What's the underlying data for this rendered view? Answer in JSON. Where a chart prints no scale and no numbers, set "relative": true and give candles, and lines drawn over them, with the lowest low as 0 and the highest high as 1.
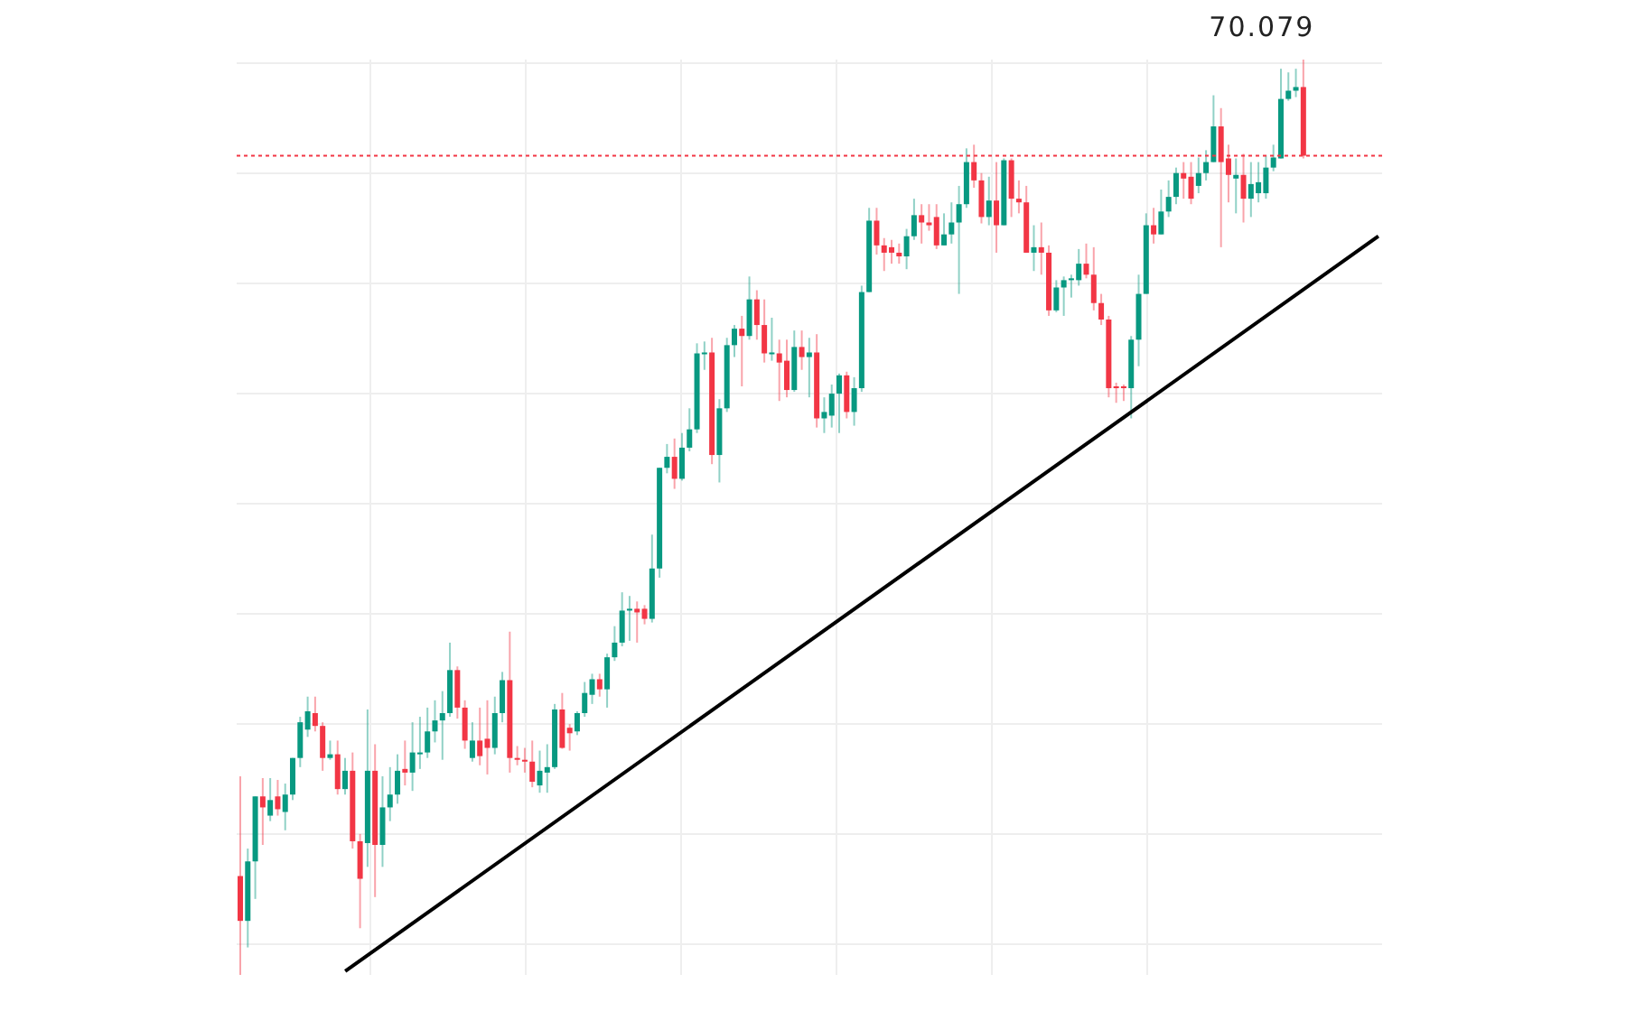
{
  "chart_data": {
    "type": "candlestick",
    "relative": true,
    "grid": true,
    "categories": [
      null,
      null,
      null,
      null,
      null,
      null,
      null,
      null,
      null,
      null,
      null,
      null,
      null,
      null,
      null,
      null,
      null,
      null,
      null,
      null,
      null,
      null,
      null,
      null,
      null,
      null,
      null,
      null,
      null,
      null,
      null,
      null,
      null,
      null,
      null,
      null,
      null,
      null,
      null,
      null,
      null,
      null,
      null,
      null,
      null,
      null,
      null,
      null,
      null,
      null,
      null,
      null,
      null,
      null,
      null,
      null,
      null,
      null,
      null,
      null,
      null,
      null,
      null,
      null,
      null,
      null,
      null,
      null,
      null,
      null,
      null,
      null,
      null,
      null,
      null,
      null,
      null,
      null,
      null,
      null,
      null,
      null,
      null,
      null,
      null,
      null,
      null,
      null,
      null,
      null,
      null,
      null,
      null,
      null,
      null,
      null,
      null,
      null,
      null,
      null,
      null,
      null,
      null,
      null,
      null,
      null,
      null,
      null,
      null,
      null,
      null,
      null,
      null,
      null,
      null,
      null,
      null,
      null,
      null,
      null,
      null,
      null,
      null,
      null,
      null,
      null,
      null,
      null,
      null,
      null,
      null,
      null,
      null,
      null,
      null,
      null,
      null,
      null,
      null,
      null,
      null,
      null,
      null,
      null,
      null,
      null,
      null,
      null,
      null,
      null,
      null,
      null,
      null
    ],
    "ohlc": [
      [
        0.108,
        0.217,
        0,
        0.059
      ],
      [
        0.059,
        0.138,
        0.03,
        0.124
      ],
      [
        0.124,
        0.195,
        0.083,
        0.195
      ],
      [
        0.195,
        0.215,
        0.142,
        0.183
      ],
      [
        0.174,
        0.215,
        0.168,
        0.191
      ],
      [
        0.195,
        0.213,
        0.174,
        0.181
      ],
      [
        0.178,
        0.209,
        0.158,
        0.197
      ],
      [
        0.197,
        0.237,
        0.191,
        0.237
      ],
      [
        0.237,
        0.282,
        0.227,
        0.276
      ],
      [
        0.268,
        0.304,
        0.26,
        0.288
      ],
      [
        0.286,
        0.304,
        0.266,
        0.272
      ],
      [
        0.272,
        0.276,
        0.223,
        0.237
      ],
      [
        0.237,
        0.256,
        0.235,
        0.241
      ],
      [
        0.241,
        0.256,
        0.197,
        0.203
      ],
      [
        0.203,
        0.237,
        0.197,
        0.223
      ],
      [
        0.223,
        0.243,
        0.138,
        0.146
      ],
      [
        0.146,
        0.154,
        0.051,
        0.105
      ],
      [
        0.144,
        0.29,
        0.118,
        0.223
      ],
      [
        0.223,
        0.252,
        0.085,
        0.142
      ],
      [
        0.142,
        0.217,
        0.118,
        0.183
      ],
      [
        0.183,
        0.227,
        0.168,
        0.197
      ],
      [
        0.197,
        0.241,
        0.187,
        0.223
      ],
      [
        0.225,
        0.256,
        0.207,
        0.221
      ],
      [
        0.221,
        0.276,
        0.201,
        0.243
      ],
      [
        0.241,
        0.282,
        0.225,
        0.243
      ],
      [
        0.243,
        0.292,
        0.237,
        0.266
      ],
      [
        0.266,
        0.3,
        0.254,
        0.278
      ],
      [
        0.278,
        0.31,
        0.235,
        0.286
      ],
      [
        0.286,
        0.363,
        0.282,
        0.333
      ],
      [
        0.333,
        0.337,
        0.28,
        0.292
      ],
      [
        0.292,
        0.3,
        0.247,
        0.256
      ],
      [
        0.237,
        0.276,
        0.233,
        0.256
      ],
      [
        0.256,
        0.292,
        0.229,
        0.239
      ],
      [
        0.258,
        0.3,
        0.219,
        0.248
      ],
      [
        0.248,
        0.304,
        0.241,
        0.286
      ],
      [
        0.286,
        0.331,
        0.276,
        0.322
      ],
      [
        0.322,
        0.375,
        0.221,
        0.237
      ],
      [
        0.237,
        0.25,
        0.229,
        0.235
      ],
      [
        0.235,
        0.248,
        0.221,
        0.233
      ],
      [
        0.233,
        0.256,
        0.205,
        0.211
      ],
      [
        0.207,
        0.245,
        0.199,
        0.223
      ],
      [
        0.221,
        0.252,
        0.199,
        0.227
      ],
      [
        0.227,
        0.296,
        0.225,
        0.29
      ],
      [
        0.29,
        0.308,
        0.247,
        0.248
      ],
      [
        0.27,
        0.274,
        0.245,
        0.264
      ],
      [
        0.266,
        0.288,
        0.262,
        0.286
      ],
      [
        0.286,
        0.32,
        0.282,
        0.308
      ],
      [
        0.306,
        0.329,
        0.296,
        0.323
      ],
      [
        0.323,
        0.329,
        0.304,
        0.312
      ],
      [
        0.312,
        0.351,
        0.292,
        0.347
      ],
      [
        0.347,
        0.381,
        0.343,
        0.363
      ],
      [
        0.363,
        0.418,
        0.359,
        0.398
      ],
      [
        0.398,
        0.414,
        0.365,
        0.4
      ],
      [
        0.4,
        0.408,
        0.363,
        0.396
      ],
      [
        0.4,
        0.404,
        0.383,
        0.389
      ],
      [
        0.389,
        0.481,
        0.385,
        0.444
      ],
      [
        0.444,
        0.554,
        0.434,
        0.554
      ],
      [
        0.554,
        0.58,
        0.548,
        0.566
      ],
      [
        0.566,
        0.586,
        0.531,
        0.542
      ],
      [
        0.542,
        0.592,
        0.54,
        0.576
      ],
      [
        0.576,
        0.619,
        0.572,
        0.596
      ],
      [
        0.596,
        0.69,
        0.592,
        0.679
      ],
      [
        0.679,
        0.692,
        0.661,
        0.68
      ],
      [
        0.68,
        0.696,
        0.558,
        0.568
      ],
      [
        0.568,
        0.629,
        0.538,
        0.619
      ],
      [
        0.619,
        0.696,
        0.615,
        0.688
      ],
      [
        0.688,
        0.71,
        0.675,
        0.706
      ],
      [
        0.706,
        0.72,
        0.643,
        0.698
      ],
      [
        0.698,
        0.763,
        0.694,
        0.738
      ],
      [
        0.738,
        0.748,
        0.694,
        0.71
      ],
      [
        0.71,
        0.738,
        0.669,
        0.679
      ],
      [
        0.679,
        0.718,
        0.671,
        0.68
      ],
      [
        0.679,
        0.694,
        0.627,
        0.669
      ],
      [
        0.671,
        0.694,
        0.631,
        0.639
      ],
      [
        0.639,
        0.704,
        0.637,
        0.686
      ],
      [
        0.686,
        0.704,
        0.661,
        0.675
      ],
      [
        0.675,
        0.696,
        0.631,
        0.68
      ],
      [
        0.68,
        0.7,
        0.598,
        0.608
      ],
      [
        0.608,
        0.631,
        0.592,
        0.615
      ],
      [
        0.611,
        0.645,
        0.598,
        0.635
      ],
      [
        0.635,
        0.657,
        0.592,
        0.655
      ],
      [
        0.655,
        0.659,
        0.608,
        0.615
      ],
      [
        0.615,
        0.653,
        0.6,
        0.641
      ],
      [
        0.641,
        0.753,
        0.637,
        0.746
      ],
      [
        0.746,
        0.838,
        0.746,
        0.824
      ],
      [
        0.824,
        0.838,
        0.787,
        0.797
      ],
      [
        0.797,
        0.805,
        0.769,
        0.789
      ],
      [
        0.795,
        0.803,
        0.777,
        0.789
      ],
      [
        0.789,
        0.799,
        0.777,
        0.785
      ],
      [
        0.785,
        0.815,
        0.771,
        0.807
      ],
      [
        0.807,
        0.848,
        0.803,
        0.83
      ],
      [
        0.83,
        0.842,
        0.799,
        0.822
      ],
      [
        0.822,
        0.842,
        0.813,
        0.819
      ],
      [
        0.828,
        0.842,
        0.793,
        0.797
      ],
      [
        0.797,
        0.832,
        0.797,
        0.809
      ],
      [
        0.809,
        0.844,
        0.799,
        0.822
      ],
      [
        0.822,
        0.862,
        0.744,
        0.842
      ],
      [
        0.842,
        0.903,
        0.838,
        0.888
      ],
      [
        0.888,
        0.907,
        0.86,
        0.868
      ],
      [
        0.868,
        0.876,
        0.821,
        0.828
      ],
      [
        0.828,
        0.872,
        0.819,
        0.846
      ],
      [
        0.846,
        0.888,
        0.789,
        0.819
      ],
      [
        0.819,
        0.892,
        0.819,
        0.89
      ],
      [
        0.89,
        0.892,
        0.828,
        0.848
      ],
      [
        0.848,
        0.868,
        0.832,
        0.844
      ],
      [
        0.844,
        0.862,
        0.789,
        0.789
      ],
      [
        0.789,
        0.819,
        0.769,
        0.795
      ],
      [
        0.795,
        0.822,
        0.765,
        0.789
      ],
      [
        0.789,
        0.797,
        0.72,
        0.726
      ],
      [
        0.726,
        0.759,
        0.724,
        0.751
      ],
      [
        0.751,
        0.763,
        0.72,
        0.759
      ],
      [
        0.759,
        0.765,
        0.74,
        0.761
      ],
      [
        0.759,
        0.793,
        0.753,
        0.777
      ],
      [
        0.777,
        0.799,
        0.761,
        0.765
      ],
      [
        0.765,
        0.795,
        0.726,
        0.734
      ],
      [
        0.734,
        0.744,
        0.71,
        0.716
      ],
      [
        0.716,
        0.72,
        0.631,
        0.641
      ],
      [
        0.643,
        0.647,
        0.625,
        0.641
      ],
      [
        0.643,
        0.645,
        0.627,
        0.641
      ],
      [
        0.641,
        0.698,
        0.608,
        0.694
      ],
      [
        0.694,
        0.765,
        0.665,
        0.744
      ],
      [
        0.744,
        0.832,
        0.744,
        0.819
      ],
      [
        0.819,
        0.838,
        0.799,
        0.809
      ],
      [
        0.809,
        0.858,
        0.809,
        0.834
      ],
      [
        0.834,
        0.868,
        0.828,
        0.85
      ],
      [
        0.85,
        0.882,
        0.842,
        0.876
      ],
      [
        0.876,
        0.888,
        0.848,
        0.87
      ],
      [
        0.872,
        0.888,
        0.842,
        0.848
      ],
      [
        0.862,
        0.893,
        0.854,
        0.876
      ],
      [
        0.876,
        0.901,
        0.868,
        0.888
      ],
      [
        0.888,
        0.961,
        0.888,
        0.927
      ],
      [
        0.927,
        0.947,
        0.795,
        0.888
      ],
      [
        0.892,
        0.907,
        0.844,
        0.874
      ],
      [
        0.87,
        0.892,
        0.832,
        0.874
      ],
      [
        0.874,
        0.897,
        0.822,
        0.848
      ],
      [
        0.848,
        0.888,
        0.828,
        0.864
      ],
      [
        0.854,
        0.888,
        0.844,
        0.866
      ],
      [
        0.854,
        0.895,
        0.848,
        0.882
      ],
      [
        0.882,
        0.907,
        0.878,
        0.893
      ],
      [
        0.892,
        0.99,
        0.892,
        0.957
      ],
      [
        0.957,
        0.986,
        0.955,
        0.966
      ],
      [
        0.966,
        0.99,
        0.959,
        0.97
      ],
      [
        0.97,
        1,
        0.892,
        0.895
      ],
      null,
      null,
      null,
      null,
      null,
      null,
      null,
      null,
      null,
      null
    ],
    "series": [
      {
        "type": "line",
        "values": [
          null,
          null,
          null,
          null,
          null,
          null,
          null,
          null,
          null,
          null,
          null,
          null,
          null,
          null,
          0.004,
          null,
          null,
          null,
          null,
          null,
          null,
          null,
          null,
          null,
          null,
          null,
          null,
          null,
          null,
          null,
          null,
          null,
          null,
          null,
          null,
          null,
          null,
          null,
          null,
          null,
          null,
          null,
          null,
          null,
          null,
          null,
          null,
          null,
          null,
          null,
          null,
          null,
          null,
          null,
          null,
          null,
          null,
          null,
          null,
          null,
          null,
          null,
          null,
          null,
          null,
          null,
          null,
          null,
          null,
          null,
          null,
          null,
          null,
          null,
          null,
          null,
          null,
          null,
          null,
          null,
          null,
          null,
          null,
          null,
          null,
          null,
          null,
          null,
          null,
          null,
          null,
          null,
          null,
          null,
          null,
          null,
          null,
          null,
          null,
          null,
          null,
          null,
          null,
          null,
          null,
          null,
          null,
          null,
          null,
          null,
          null,
          null,
          null,
          null,
          null,
          null,
          null,
          null,
          null,
          null,
          null,
          null,
          null,
          null,
          null,
          null,
          null,
          null,
          null,
          null,
          null,
          null,
          null,
          null,
          null,
          null,
          null,
          null,
          null,
          null,
          null,
          null,
          null,
          null,
          null,
          null,
          null,
          null,
          null,
          null,
          null,
          null,
          0.807
        ],
        "color": "#000000"
      }
    ],
    "ref_lines": [
      {
        "axis": "y",
        "value": 0.895,
        "color": "#f23645",
        "line_style": "dotted"
      }
    ],
    "annotations": [
      "70.079"
    ]
  }
}
